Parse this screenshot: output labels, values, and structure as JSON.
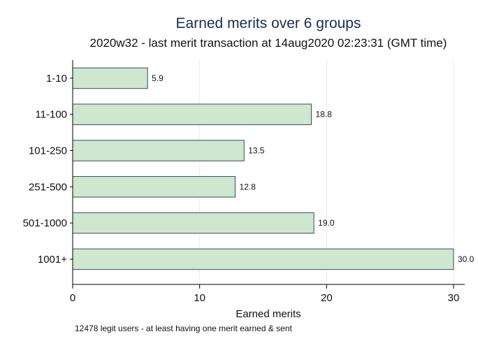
{
  "chart_data": {
    "type": "bar",
    "orientation": "horizontal",
    "title": "Earned merits over 6 groups",
    "subtitle": "2020w32 - last merit transaction at 14aug2020 02:23:31 (GMT time)",
    "categories": [
      "1-10",
      "11-100",
      "101-250",
      "251-500",
      "501-1000",
      "1001+"
    ],
    "values": [
      5.9,
      18.8,
      13.5,
      12.8,
      19.0,
      30.0
    ],
    "value_labels": [
      "5.9",
      "18.8",
      "13.5",
      "12.8",
      "19.0",
      "30.0"
    ],
    "xlabel": "Earned merits",
    "ylabel": "",
    "xlim": [
      0,
      30
    ],
    "xticks": [
      0,
      10,
      20,
      30
    ],
    "note": "12478 legit users - at least having one merit earned & sent",
    "grid": "vertical",
    "colors": {
      "bar_fill": "#cfe6cf",
      "bar_stroke": "#2f4f5f",
      "grid": "#e6eef3",
      "axis": "#000000"
    }
  }
}
